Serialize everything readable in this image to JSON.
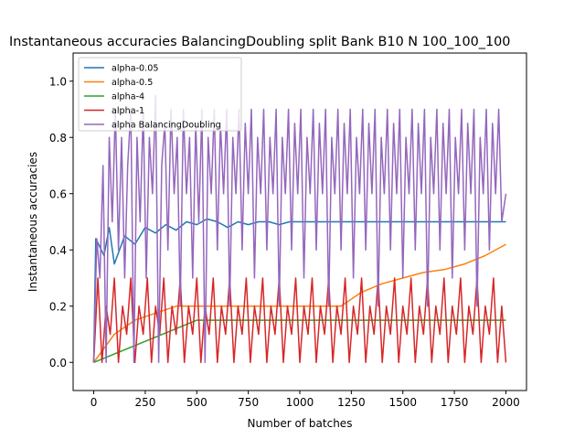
{
  "chart_data": {
    "type": "line",
    "title": "Instantaneous accuracies BalancingDoubling split Bank B10 N 100_100_100",
    "xlabel": "Number of batches",
    "ylabel": "Instantaneous accuracies",
    "xlim": [
      -100,
      2100
    ],
    "ylim": [
      -0.1,
      1.1
    ],
    "xticks": [
      0,
      250,
      500,
      750,
      1000,
      1250,
      1500,
      1750,
      2000
    ],
    "xtick_labels": [
      "0",
      "250",
      "500",
      "750",
      "1000",
      "1250",
      "1500",
      "1750",
      "2000"
    ],
    "yticks": [
      0.0,
      0.2,
      0.4,
      0.6,
      0.8,
      1.0
    ],
    "ytick_labels": [
      "0.0",
      "0.2",
      "0.4",
      "0.6",
      "0.8",
      "1.0"
    ],
    "grid": false,
    "legend_position": "top-left",
    "series": [
      {
        "name": "alpha-0.05",
        "color": "#1f77b4",
        "points": [
          [
            0,
            0.0
          ],
          [
            10,
            0.44
          ],
          [
            50,
            0.38
          ],
          [
            75,
            0.48
          ],
          [
            100,
            0.35
          ],
          [
            150,
            0.45
          ],
          [
            200,
            0.42
          ],
          [
            250,
            0.48
          ],
          [
            300,
            0.46
          ],
          [
            350,
            0.49
          ],
          [
            400,
            0.47
          ],
          [
            450,
            0.5
          ],
          [
            500,
            0.49
          ],
          [
            550,
            0.51
          ],
          [
            600,
            0.5
          ],
          [
            650,
            0.48
          ],
          [
            700,
            0.5
          ],
          [
            750,
            0.49
          ],
          [
            800,
            0.5
          ],
          [
            850,
            0.5
          ],
          [
            900,
            0.49
          ],
          [
            950,
            0.5
          ],
          [
            1000,
            0.5
          ],
          [
            1100,
            0.5
          ],
          [
            1200,
            0.5
          ],
          [
            1300,
            0.5
          ],
          [
            1400,
            0.5
          ],
          [
            1500,
            0.5
          ],
          [
            1600,
            0.5
          ],
          [
            1700,
            0.5
          ],
          [
            1800,
            0.5
          ],
          [
            1900,
            0.5
          ],
          [
            2000,
            0.5
          ]
        ]
      },
      {
        "name": "alpha-0.5",
        "color": "#ff7f0e",
        "points": [
          [
            0,
            0.0
          ],
          [
            100,
            0.1
          ],
          [
            200,
            0.15
          ],
          [
            400,
            0.2
          ],
          [
            600,
            0.2
          ],
          [
            800,
            0.2
          ],
          [
            1000,
            0.2
          ],
          [
            1200,
            0.2
          ],
          [
            1300,
            0.25
          ],
          [
            1400,
            0.28
          ],
          [
            1500,
            0.3
          ],
          [
            1600,
            0.32
          ],
          [
            1700,
            0.33
          ],
          [
            1800,
            0.35
          ],
          [
            1900,
            0.38
          ],
          [
            2000,
            0.42
          ]
        ]
      },
      {
        "name": "alpha-4",
        "color": "#2ca02c",
        "points": [
          [
            0,
            0.0
          ],
          [
            500,
            0.15
          ],
          [
            1000,
            0.15
          ],
          [
            1500,
            0.15
          ],
          [
            2000,
            0.15
          ]
        ]
      },
      {
        "name": "alpha-1",
        "color": "#d62728",
        "points": [
          [
            0,
            0.0
          ],
          [
            20,
            0.3
          ],
          [
            40,
            0.0
          ],
          [
            60,
            0.2
          ],
          [
            80,
            0.1
          ],
          [
            100,
            0.3
          ],
          [
            120,
            0.0
          ],
          [
            140,
            0.2
          ],
          [
            160,
            0.1
          ],
          [
            180,
            0.3
          ],
          [
            200,
            0.0
          ],
          [
            220,
            0.2
          ],
          [
            240,
            0.1
          ],
          [
            260,
            0.3
          ],
          [
            280,
            0.0
          ],
          [
            300,
            0.2
          ],
          [
            320,
            0.1
          ],
          [
            340,
            0.3
          ],
          [
            360,
            0.0
          ],
          [
            380,
            0.2
          ],
          [
            400,
            0.1
          ],
          [
            420,
            0.3
          ],
          [
            440,
            0.0
          ],
          [
            460,
            0.2
          ],
          [
            480,
            0.1
          ],
          [
            500,
            0.3
          ],
          [
            520,
            0.0
          ],
          [
            540,
            0.2
          ],
          [
            560,
            0.1
          ],
          [
            580,
            0.3
          ],
          [
            600,
            0.0
          ],
          [
            620,
            0.2
          ],
          [
            640,
            0.1
          ],
          [
            660,
            0.3
          ],
          [
            680,
            0.0
          ],
          [
            700,
            0.2
          ],
          [
            720,
            0.1
          ],
          [
            740,
            0.3
          ],
          [
            760,
            0.0
          ],
          [
            780,
            0.2
          ],
          [
            800,
            0.1
          ],
          [
            820,
            0.3
          ],
          [
            840,
            0.0
          ],
          [
            860,
            0.2
          ],
          [
            880,
            0.1
          ],
          [
            900,
            0.3
          ],
          [
            920,
            0.0
          ],
          [
            940,
            0.2
          ],
          [
            960,
            0.1
          ],
          [
            980,
            0.3
          ],
          [
            1000,
            0.0
          ],
          [
            1020,
            0.2
          ],
          [
            1040,
            0.1
          ],
          [
            1060,
            0.3
          ],
          [
            1080,
            0.0
          ],
          [
            1100,
            0.2
          ],
          [
            1120,
            0.1
          ],
          [
            1140,
            0.3
          ],
          [
            1160,
            0.0
          ],
          [
            1180,
            0.2
          ],
          [
            1200,
            0.1
          ],
          [
            1220,
            0.3
          ],
          [
            1240,
            0.0
          ],
          [
            1260,
            0.2
          ],
          [
            1280,
            0.1
          ],
          [
            1300,
            0.3
          ],
          [
            1320,
            0.0
          ],
          [
            1340,
            0.2
          ],
          [
            1360,
            0.1
          ],
          [
            1380,
            0.3
          ],
          [
            1400,
            0.0
          ],
          [
            1420,
            0.2
          ],
          [
            1440,
            0.1
          ],
          [
            1460,
            0.3
          ],
          [
            1480,
            0.0
          ],
          [
            1500,
            0.2
          ],
          [
            1520,
            0.1
          ],
          [
            1540,
            0.3
          ],
          [
            1560,
            0.0
          ],
          [
            1580,
            0.2
          ],
          [
            1600,
            0.1
          ],
          [
            1620,
            0.3
          ],
          [
            1640,
            0.0
          ],
          [
            1660,
            0.2
          ],
          [
            1680,
            0.1
          ],
          [
            1700,
            0.3
          ],
          [
            1720,
            0.0
          ],
          [
            1740,
            0.2
          ],
          [
            1760,
            0.1
          ],
          [
            1780,
            0.3
          ],
          [
            1800,
            0.0
          ],
          [
            1820,
            0.2
          ],
          [
            1840,
            0.1
          ],
          [
            1860,
            0.3
          ],
          [
            1880,
            0.0
          ],
          [
            1900,
            0.2
          ],
          [
            1920,
            0.1
          ],
          [
            1940,
            0.3
          ],
          [
            1960,
            0.0
          ],
          [
            1980,
            0.2
          ],
          [
            2000,
            0.0
          ]
        ]
      },
      {
        "name": "alpha BalancingDoubling",
        "color": "#9467bd",
        "points": [
          [
            0,
            0.0
          ],
          [
            15,
            0.44
          ],
          [
            30,
            0.3
          ],
          [
            45,
            0.7
          ],
          [
            60,
            0.0
          ],
          [
            75,
            0.8
          ],
          [
            90,
            0.5
          ],
          [
            105,
            0.9
          ],
          [
            120,
            0.4
          ],
          [
            135,
            0.8
          ],
          [
            150,
            0.3
          ],
          [
            165,
            0.7
          ],
          [
            180,
            0.9
          ],
          [
            195,
            0.0
          ],
          [
            210,
            0.8
          ],
          [
            225,
            0.5
          ],
          [
            240,
            0.9
          ],
          [
            255,
            0.3
          ],
          [
            270,
            0.8
          ],
          [
            285,
            0.6
          ],
          [
            300,
            0.95
          ],
          [
            315,
            0.0
          ],
          [
            330,
            0.7
          ],
          [
            345,
            0.85
          ],
          [
            360,
            0.4
          ],
          [
            375,
            0.9
          ],
          [
            390,
            0.6
          ],
          [
            405,
            0.8
          ],
          [
            420,
            0.2
          ],
          [
            435,
            0.9
          ],
          [
            450,
            0.6
          ],
          [
            465,
            0.8
          ],
          [
            480,
            0.3
          ],
          [
            495,
            0.85
          ],
          [
            510,
            0.5
          ],
          [
            525,
            0.9
          ],
          [
            540,
            0.0
          ],
          [
            555,
            0.8
          ],
          [
            570,
            0.6
          ],
          [
            585,
            0.9
          ],
          [
            600,
            0.4
          ],
          [
            615,
            0.85
          ],
          [
            630,
            0.6
          ],
          [
            645,
            0.9
          ],
          [
            660,
            0.2
          ],
          [
            675,
            0.8
          ],
          [
            690,
            0.6
          ],
          [
            705,
            0.9
          ],
          [
            720,
            0.4
          ],
          [
            735,
            0.85
          ],
          [
            750,
            0.6
          ],
          [
            765,
            0.9
          ],
          [
            780,
            0.3
          ],
          [
            795,
            0.8
          ],
          [
            810,
            0.6
          ],
          [
            825,
            0.9
          ],
          [
            840,
            0.4
          ],
          [
            855,
            0.8
          ],
          [
            870,
            0.6
          ],
          [
            885,
            0.9
          ],
          [
            900,
            0.2
          ],
          [
            915,
            0.8
          ],
          [
            930,
            0.6
          ],
          [
            945,
            0.9
          ],
          [
            960,
            0.4
          ],
          [
            975,
            0.85
          ],
          [
            990,
            0.6
          ],
          [
            1005,
            0.9
          ],
          [
            1020,
            0.3
          ],
          [
            1035,
            0.8
          ],
          [
            1050,
            0.6
          ],
          [
            1065,
            0.9
          ],
          [
            1080,
            0.4
          ],
          [
            1095,
            0.85
          ],
          [
            1110,
            0.6
          ],
          [
            1125,
            0.9
          ],
          [
            1140,
            0.2
          ],
          [
            1155,
            0.8
          ],
          [
            1170,
            0.6
          ],
          [
            1185,
            0.9
          ],
          [
            1200,
            0.4
          ],
          [
            1215,
            0.85
          ],
          [
            1230,
            0.6
          ],
          [
            1245,
            0.9
          ],
          [
            1260,
            0.3
          ],
          [
            1275,
            0.8
          ],
          [
            1290,
            0.6
          ],
          [
            1305,
            0.9
          ],
          [
            1320,
            0.4
          ],
          [
            1335,
            0.85
          ],
          [
            1350,
            0.6
          ],
          [
            1365,
            0.9
          ],
          [
            1380,
            0.2
          ],
          [
            1395,
            0.8
          ],
          [
            1410,
            0.6
          ],
          [
            1425,
            0.9
          ],
          [
            1440,
            0.4
          ],
          [
            1455,
            0.85
          ],
          [
            1470,
            0.6
          ],
          [
            1485,
            0.9
          ],
          [
            1500,
            0.3
          ],
          [
            1515,
            0.8
          ],
          [
            1530,
            0.6
          ],
          [
            1545,
            0.9
          ],
          [
            1560,
            0.4
          ],
          [
            1575,
            0.85
          ],
          [
            1590,
            0.6
          ],
          [
            1605,
            0.9
          ],
          [
            1620,
            0.2
          ],
          [
            1635,
            0.8
          ],
          [
            1650,
            0.6
          ],
          [
            1665,
            0.9
          ],
          [
            1680,
            0.4
          ],
          [
            1695,
            0.85
          ],
          [
            1710,
            0.6
          ],
          [
            1725,
            0.9
          ],
          [
            1740,
            0.3
          ],
          [
            1755,
            0.8
          ],
          [
            1770,
            0.6
          ],
          [
            1785,
            0.9
          ],
          [
            1800,
            0.4
          ],
          [
            1815,
            0.85
          ],
          [
            1830,
            0.6
          ],
          [
            1845,
            0.9
          ],
          [
            1860,
            0.2
          ],
          [
            1875,
            0.8
          ],
          [
            1890,
            0.6
          ],
          [
            1905,
            0.9
          ],
          [
            1920,
            0.4
          ],
          [
            1935,
            0.85
          ],
          [
            1950,
            0.6
          ],
          [
            1965,
            0.9
          ],
          [
            1980,
            0.5
          ],
          [
            2000,
            0.6
          ]
        ]
      }
    ]
  }
}
